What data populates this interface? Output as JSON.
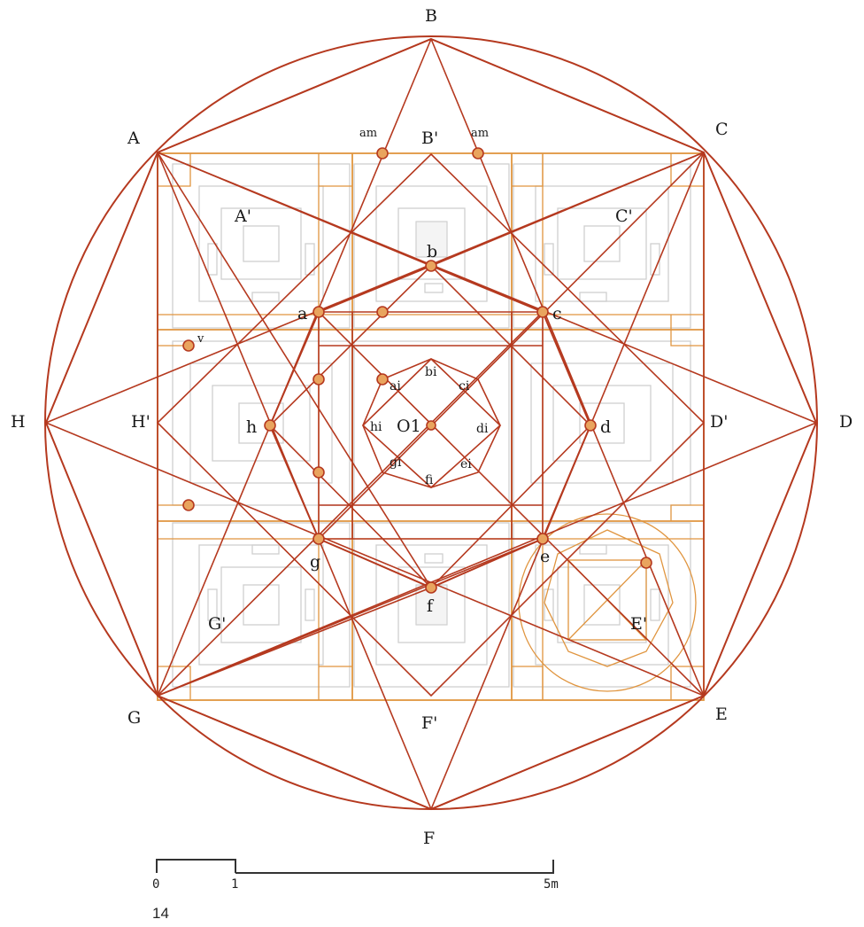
{
  "colors": {
    "construction_lines": "#b5391f",
    "grid_lines": "#e0953f",
    "floor_plan": "#cfcfcf",
    "point_marker": "#e9a45e"
  },
  "labels": {
    "octagon_vertices": {
      "A": "A",
      "B": "B",
      "C": "C",
      "D": "D",
      "E": "E",
      "F": "F",
      "G": "G",
      "H": "H"
    },
    "square_midpoints": {
      "A_prime": "A'",
      "B_prime": "B'",
      "C_prime": "C'",
      "D_prime": "D'",
      "E_prime": "E'",
      "F_prime": "F'",
      "G_prime": "G'",
      "H_prime": "H'"
    },
    "inner_points": {
      "a": "a",
      "b": "b",
      "c": "c",
      "d": "d",
      "e": "e",
      "f": "f",
      "g": "g",
      "h": "h"
    },
    "center_points": {
      "ai": "ai",
      "bi": "bi",
      "ci": "ci",
      "di": "di",
      "ei": "ei",
      "fi": "fi",
      "gi": "gi",
      "hi": "hi"
    },
    "center": "O1",
    "am_left": "am",
    "am_right": "am",
    "v": "v"
  },
  "scale_bar": {
    "tick_0": "0",
    "tick_1": "1",
    "tick_5": "5m"
  },
  "page_number": "14"
}
